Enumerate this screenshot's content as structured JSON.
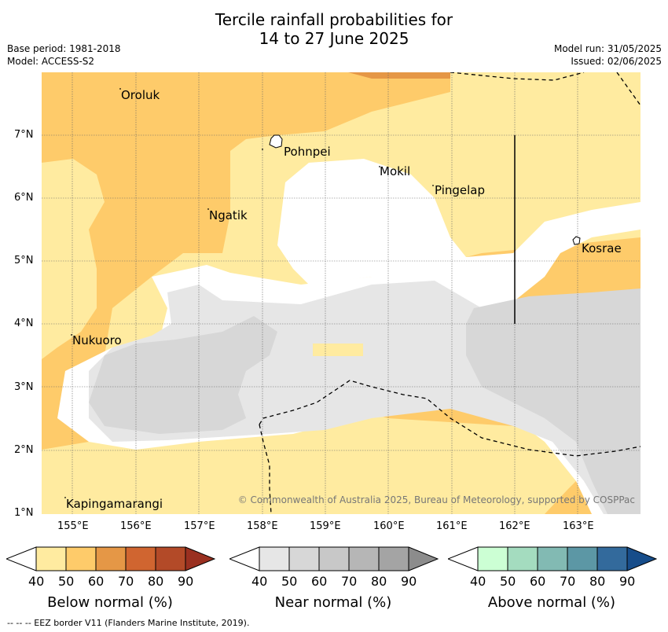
{
  "title": {
    "line1": "Tercile rainfall probabilities for",
    "line2": "14 to 27 June 2025"
  },
  "meta": {
    "base_period": "Base period: 1981-2018",
    "model": "Model: ACCESS-S2",
    "model_run": "Model run: 31/05/2025",
    "issued": "Issued: 02/06/2025"
  },
  "map": {
    "lat_ticks": [
      "7°N",
      "6°N",
      "5°N",
      "4°N",
      "3°N",
      "2°N",
      "1°N"
    ],
    "lon_ticks": [
      "155°E",
      "156°E",
      "157°E",
      "158°E",
      "159°E",
      "160°E",
      "161°E",
      "162°E",
      "163°E"
    ],
    "places": [
      {
        "name": "Oroluk"
      },
      {
        "name": "Pohnpei"
      },
      {
        "name": "Mokil"
      },
      {
        "name": "Pingelap"
      },
      {
        "name": "Ngatik"
      },
      {
        "name": "Kosrae"
      },
      {
        "name": "Nukuoro"
      },
      {
        "name": "Kapingamarangi"
      }
    ],
    "copyright": "© Commonwealth of Australia 2025, Bureau of Meteorology, supported by COSPPac"
  },
  "colorbars": [
    {
      "label": "Below normal (%)",
      "ticks": [
        "40",
        "50",
        "60",
        "70",
        "80",
        "90"
      ],
      "colors": [
        "#ffeba0",
        "#fecb6a",
        "#e59746",
        "#d06530",
        "#b34a28",
        "#9a3020"
      ]
    },
    {
      "label": "Near normal (%)",
      "ticks": [
        "40",
        "50",
        "60",
        "70",
        "80",
        "90"
      ],
      "colors": [
        "#e6e6e6",
        "#d7d7d7",
        "#c8c8c8",
        "#b6b6b6",
        "#a4a4a4",
        "#8c8c8c"
      ]
    },
    {
      "label": "Above normal (%)",
      "ticks": [
        "40",
        "50",
        "60",
        "70",
        "80",
        "90"
      ],
      "colors": [
        "#ccffd4",
        "#a4dcbf",
        "#82bab3",
        "#5c97a5",
        "#336a9c",
        "#174d8a"
      ]
    }
  ],
  "footnote": "-- -- -- EEZ border V11 (Flanders Marine Institute, 2019)."
}
